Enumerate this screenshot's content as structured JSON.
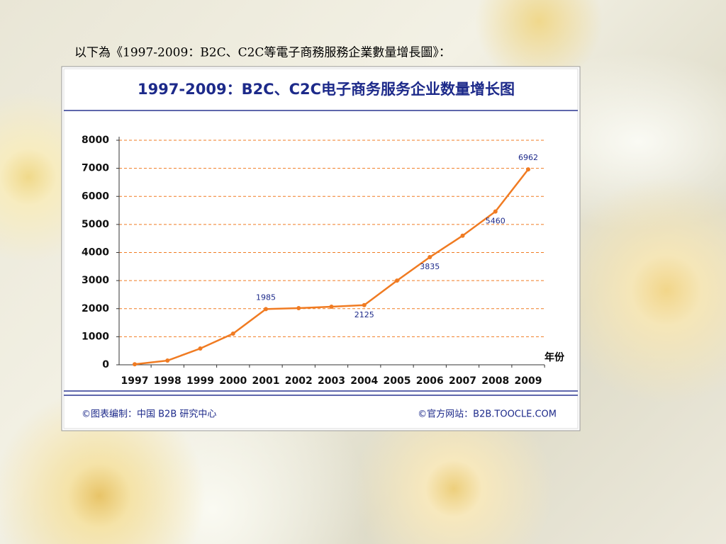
{
  "heading": "以下為《1997-2009：B2C、C2C等電子商務服務企業數量增長圖》：",
  "chart_data": {
    "type": "line",
    "title": "1997-2009：B2C、C2C电子商务服务企业数量增长图",
    "x_label": "年份",
    "categories": [
      "1997",
      "1998",
      "1999",
      "2000",
      "2001",
      "2002",
      "2003",
      "2004",
      "2005",
      "2006",
      "2007",
      "2008",
      "2009"
    ],
    "values": [
      20,
      150,
      580,
      1110,
      1985,
      2020,
      2070,
      2125,
      3000,
      3835,
      4600,
      5460,
      6962
    ],
    "value_labels": [
      null,
      null,
      null,
      null,
      "1985",
      null,
      null,
      "2125",
      null,
      "3835",
      null,
      "5460",
      "6962"
    ],
    "color": "#f07b22",
    "ylim": [
      0,
      8000
    ],
    "yticks": [
      0,
      1000,
      2000,
      3000,
      4000,
      5000,
      6000,
      7000,
      8000
    ],
    "grid": true,
    "footer_left": "©图表编制：中国 B2B 研究中心",
    "footer_right": "©官方网站：B2B.TOOCLE.COM"
  }
}
